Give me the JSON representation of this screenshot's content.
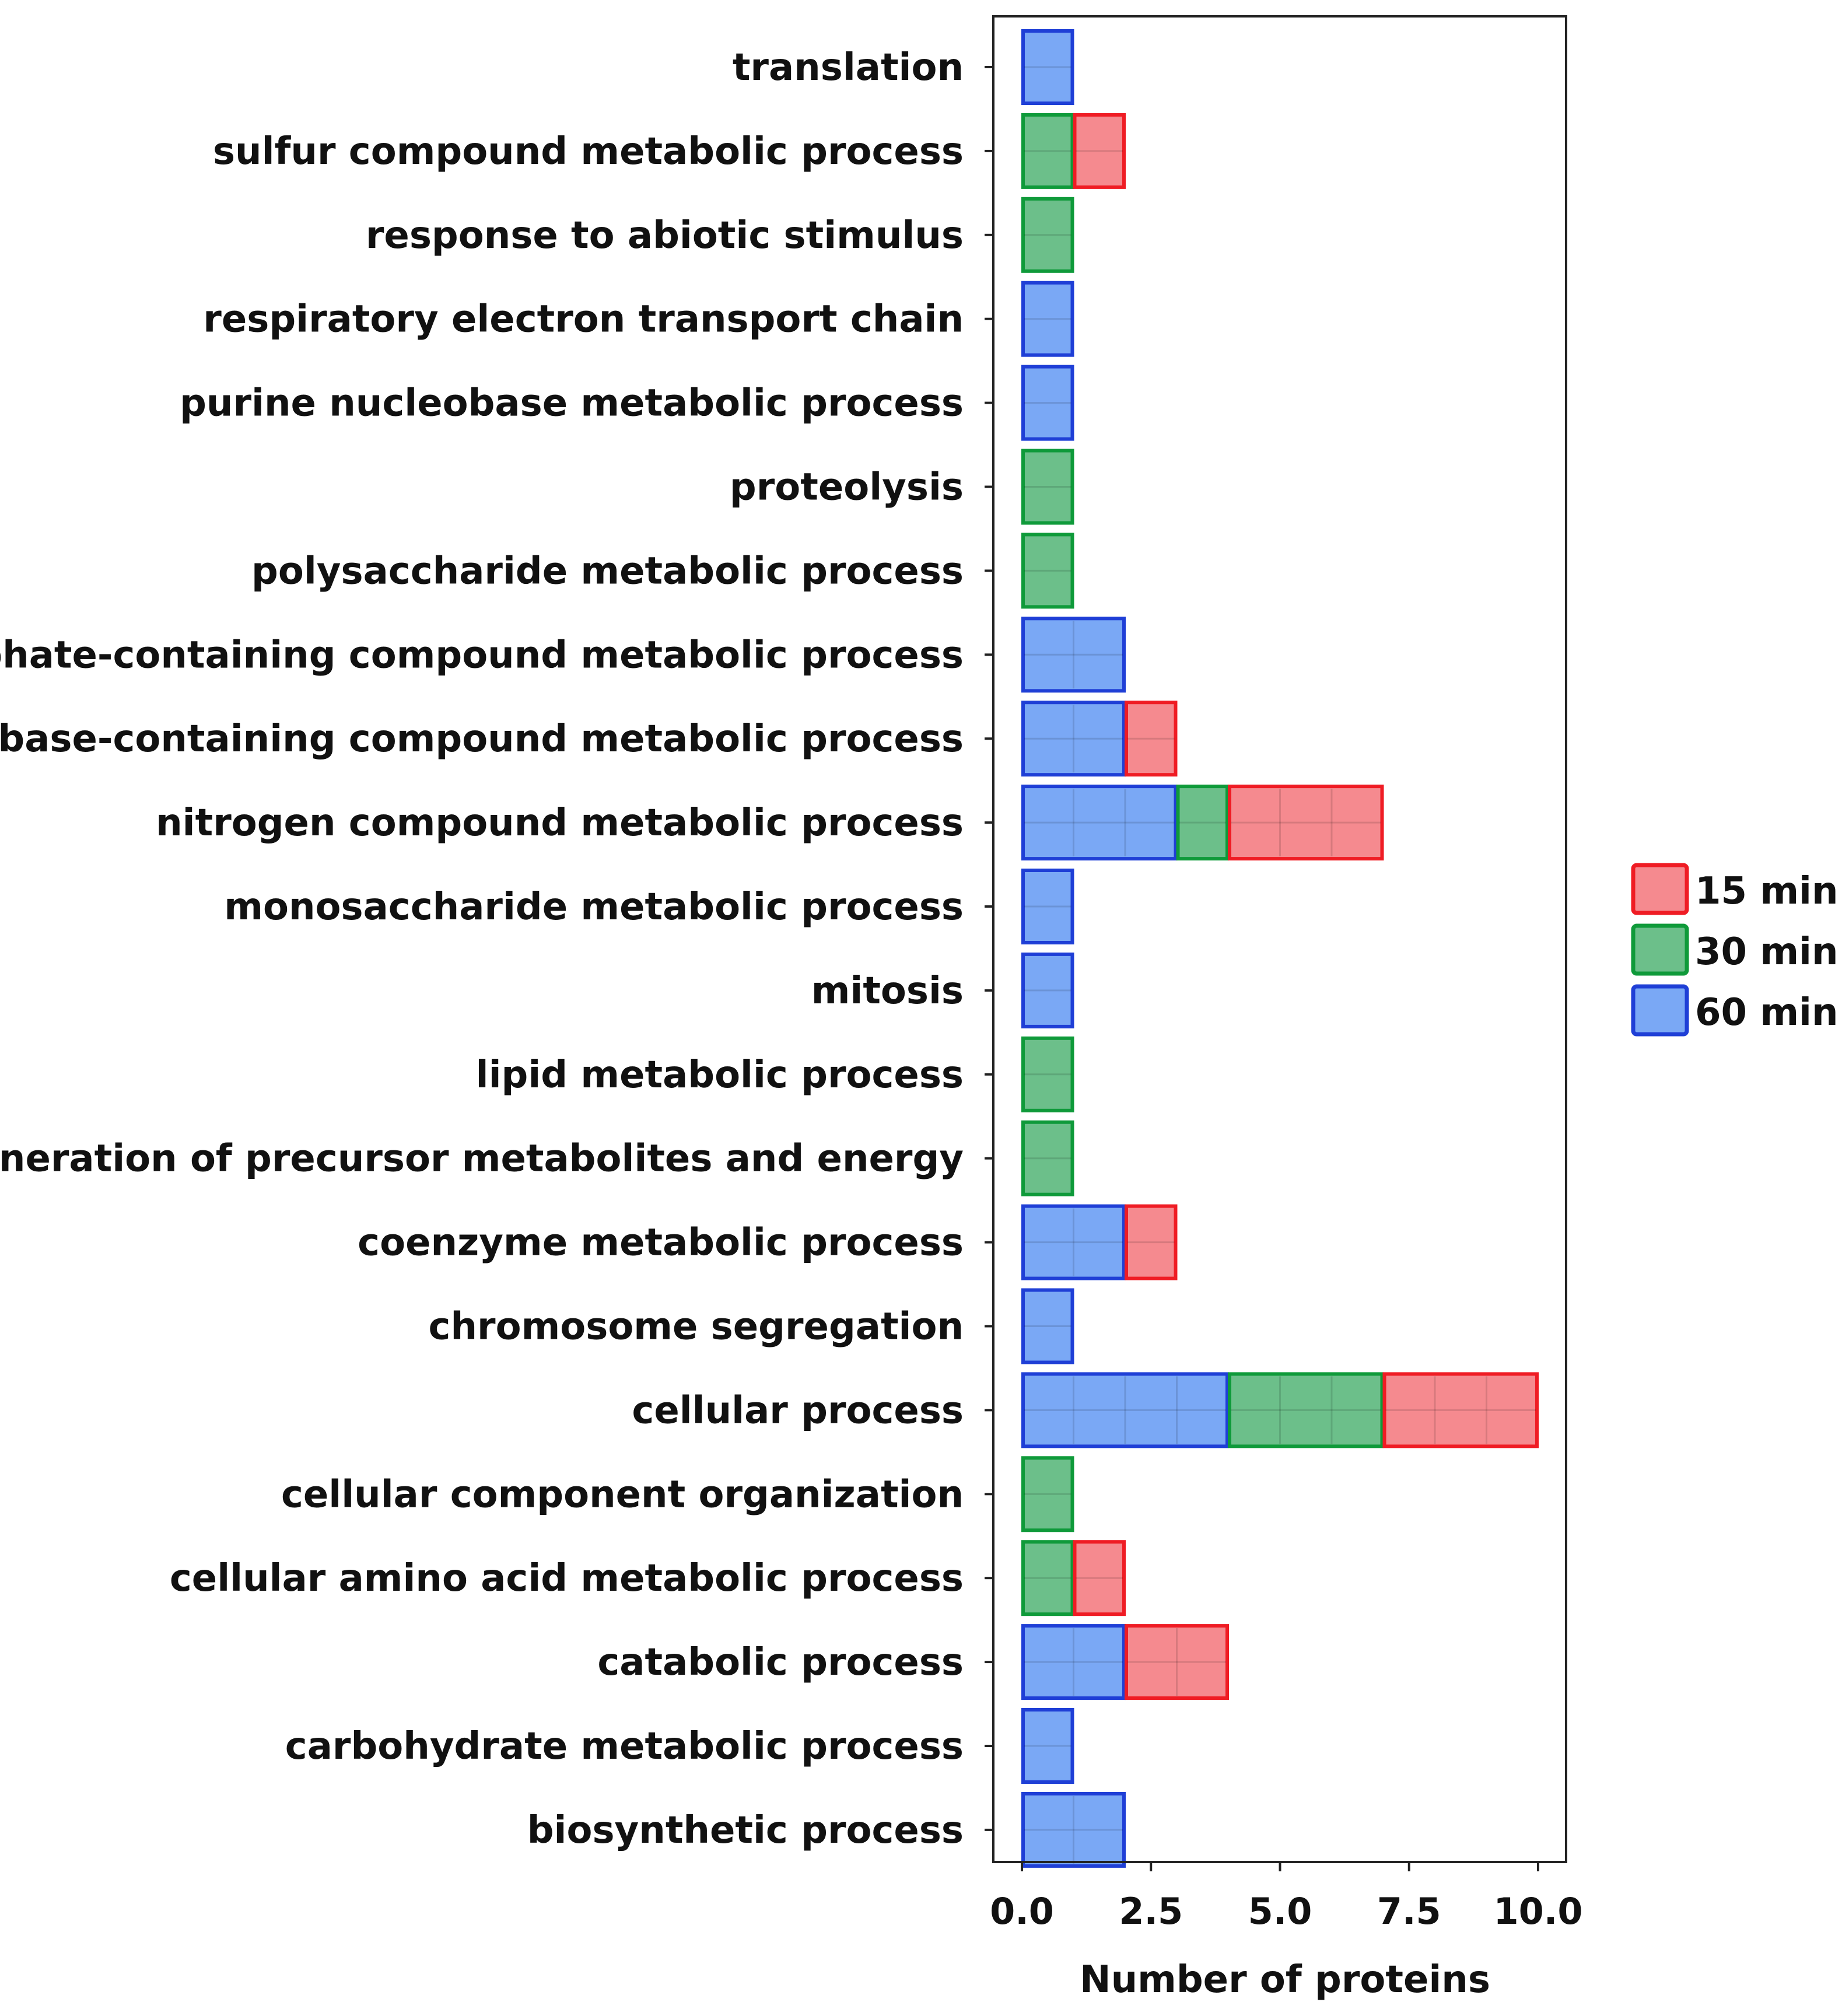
{
  "chart_data": {
    "type": "bar",
    "orientation": "horizontal",
    "stacked": true,
    "title": "",
    "xlabel": "Number of proteins",
    "ylabel": "",
    "xlim": [
      0,
      10.5
    ],
    "xticks": [
      0.0,
      2.5,
      5.0,
      7.5,
      10.0
    ],
    "xtick_labels": [
      "0.0",
      "2.5",
      "5.0",
      "7.5",
      "10.0"
    ],
    "legend_position": "right",
    "categories": [
      "translation",
      "sulfur compound metabolic process",
      "response to abiotic stimulus",
      "respiratory electron transport chain",
      "purine nucleobase metabolic process",
      "proteolysis",
      "polysaccharide metabolic process",
      "phosphate-containing compound metabolic process",
      "nucleobase-containing compound metabolic process",
      "nitrogen compound metabolic process",
      "monosaccharide metabolic process",
      "mitosis",
      "lipid metabolic process",
      "generation of precursor metabolites and energy",
      "coenzyme metabolic process",
      "chromosome segregation",
      "cellular process",
      "cellular component organization",
      "cellular amino acid metabolic process",
      "catabolic process",
      "carbohydrate metabolic process",
      "biosynthetic process"
    ],
    "series": [
      {
        "name": "60 min",
        "fill": "#7aa8f5",
        "stroke": "#1f3fd6",
        "values": [
          1,
          0,
          0,
          1,
          1,
          0,
          0,
          2,
          2,
          3,
          1,
          1,
          0,
          0,
          2,
          1,
          4,
          0,
          0,
          2,
          1,
          2
        ]
      },
      {
        "name": "30 min",
        "fill": "#6cbf8a",
        "stroke": "#0f9a3a",
        "values": [
          0,
          1,
          1,
          0,
          0,
          1,
          1,
          0,
          0,
          1,
          0,
          0,
          1,
          1,
          0,
          0,
          3,
          1,
          1,
          0,
          0,
          0
        ]
      },
      {
        "name": "15 min",
        "fill": "#f58a8f",
        "stroke": "#ef1c24",
        "values": [
          0,
          1,
          0,
          0,
          0,
          0,
          0,
          0,
          1,
          3,
          0,
          0,
          0,
          0,
          1,
          0,
          3,
          0,
          1,
          2,
          0,
          0
        ]
      }
    ],
    "legend_order": [
      "15 min",
      "30 min",
      "60 min"
    ]
  }
}
